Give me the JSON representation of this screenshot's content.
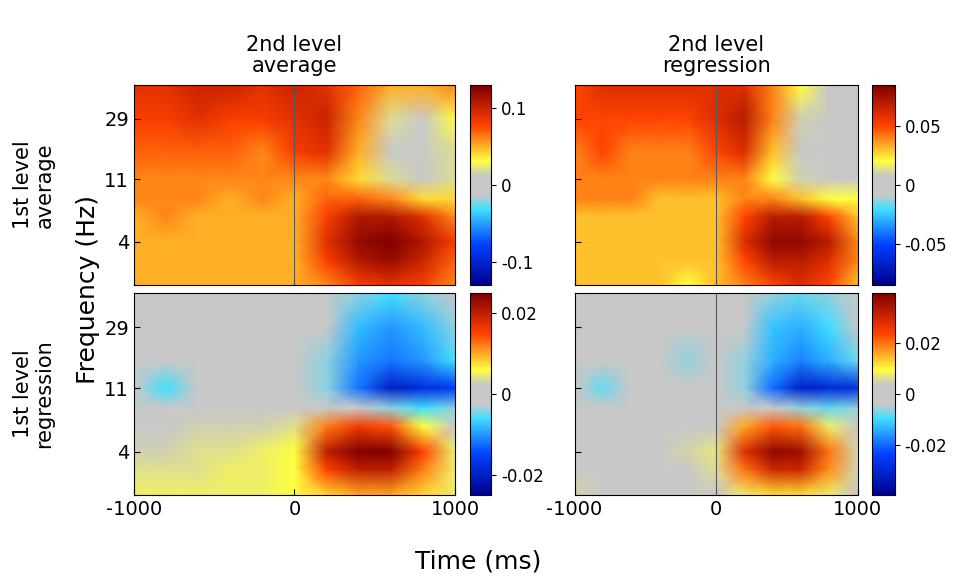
{
  "column_titles": [
    "2nd level\naverage",
    "2nd level\nregression"
  ],
  "row_labels": [
    "1st level\naverage",
    "1st level\nregression"
  ],
  "xlabel": "Time (ms)",
  "ylabel": "Frequency (Hz)",
  "chart_data": [
    {
      "type": "heatmap",
      "log": "y",
      "tick_labels": "y",
      "vline": 0,
      "x": [
        -1000,
        -800,
        -600,
        -400,
        -200,
        0,
        200,
        400,
        600,
        800,
        1000
      ],
      "y": [
        2,
        3,
        4,
        6,
        8,
        11,
        17,
        29,
        50
      ],
      "xlim": [
        -1000,
        1000
      ],
      "xticks": [
        -1000,
        0,
        1000
      ],
      "ylim": [
        2,
        50
      ],
      "yticks": [
        4,
        11,
        29
      ],
      "colorbar_range": [
        -0.13,
        0.13
      ],
      "colorbar_ticks": [
        -0.1,
        0,
        0.1
      ],
      "cells": [
        [
          0.05,
          0.05,
          0.05,
          0.05,
          0.05,
          0.05,
          0.06,
          0.08,
          0.09,
          0.08,
          0.06
        ],
        [
          0.05,
          0.05,
          0.05,
          0.05,
          0.05,
          0.05,
          0.08,
          0.11,
          0.12,
          0.1,
          0.07
        ],
        [
          0.05,
          0.05,
          0.05,
          0.05,
          0.05,
          0.05,
          0.09,
          0.12,
          0.13,
          0.11,
          0.08
        ],
        [
          0.05,
          0.06,
          0.05,
          0.05,
          0.05,
          0.05,
          0.08,
          0.11,
          0.11,
          0.09,
          0.06
        ],
        [
          0.06,
          0.06,
          0.06,
          0.05,
          0.06,
          0.05,
          0.07,
          0.07,
          0.06,
          0.04,
          0.04
        ],
        [
          0.06,
          0.06,
          0.06,
          0.06,
          0.06,
          0.06,
          0.06,
          0.04,
          0.02,
          0.01,
          0.02
        ],
        [
          0.07,
          0.07,
          0.07,
          0.07,
          0.06,
          0.08,
          0.09,
          0.05,
          0.01,
          0.0,
          0.02
        ],
        [
          0.08,
          0.08,
          0.09,
          0.08,
          0.08,
          0.09,
          0.1,
          0.06,
          0.02,
          0.01,
          0.03
        ],
        [
          0.09,
          0.09,
          0.1,
          0.1,
          0.09,
          0.1,
          0.09,
          0.07,
          0.05,
          0.05,
          0.06
        ]
      ]
    },
    {
      "type": "heatmap",
      "log": "y",
      "tick_labels": false,
      "vline": 0,
      "x": [
        -1000,
        -800,
        -600,
        -400,
        -200,
        0,
        200,
        400,
        600,
        800,
        1000
      ],
      "y": [
        2,
        3,
        4,
        6,
        8,
        11,
        17,
        29,
        50
      ],
      "xlim": [
        -1000,
        1000
      ],
      "xticks": [
        -1000,
        0,
        1000
      ],
      "ylim": [
        2,
        50
      ],
      "yticks": [
        4,
        11,
        29
      ],
      "colorbar_range": [
        -0.085,
        0.085
      ],
      "colorbar_ticks": [
        -0.05,
        0,
        0.05
      ],
      "cells": [
        [
          0.03,
          0.03,
          0.03,
          0.03,
          0.02,
          0.03,
          0.04,
          0.05,
          0.06,
          0.05,
          0.03
        ],
        [
          0.03,
          0.03,
          0.03,
          0.03,
          0.03,
          0.03,
          0.05,
          0.07,
          0.07,
          0.06,
          0.04
        ],
        [
          0.03,
          0.03,
          0.03,
          0.03,
          0.03,
          0.03,
          0.06,
          0.08,
          0.08,
          0.07,
          0.04
        ],
        [
          0.03,
          0.03,
          0.03,
          0.03,
          0.03,
          0.03,
          0.05,
          0.07,
          0.07,
          0.05,
          0.03
        ],
        [
          0.04,
          0.04,
          0.04,
          0.03,
          0.03,
          0.03,
          0.04,
          0.04,
          0.03,
          0.02,
          0.02
        ],
        [
          0.04,
          0.04,
          0.04,
          0.04,
          0.04,
          0.04,
          0.04,
          0.02,
          0.01,
          0.0,
          0.0
        ],
        [
          0.04,
          0.05,
          0.04,
          0.04,
          0.04,
          0.05,
          0.06,
          0.03,
          0.0,
          0.0,
          0.0
        ],
        [
          0.05,
          0.05,
          0.05,
          0.05,
          0.05,
          0.06,
          0.07,
          0.04,
          0.01,
          0.0,
          0.0
        ],
        [
          0.05,
          0.06,
          0.06,
          0.06,
          0.06,
          0.06,
          0.06,
          0.04,
          0.02,
          0.0,
          0.0
        ]
      ]
    },
    {
      "type": "heatmap",
      "log": "y",
      "x": [
        -1000,
        -800,
        -600,
        -400,
        -200,
        0,
        200,
        400,
        600,
        800,
        1000
      ],
      "y": [
        2,
        3,
        4,
        6,
        8,
        11,
        17,
        29,
        50
      ],
      "xlim": [
        -1000,
        1000
      ],
      "xticks": [
        -1000,
        0,
        1000
      ],
      "ylim": [
        2,
        50
      ],
      "yticks": [
        4,
        11,
        29
      ],
      "colorbar_range": [
        -0.025,
        0.025
      ],
      "colorbar_ticks": [
        -0.02,
        0,
        0.02
      ],
      "cells": [
        [
          0.005,
          0.005,
          0.005,
          0.005,
          0.005,
          0.006,
          0.008,
          0.01,
          0.01,
          0.008,
          0.005
        ],
        [
          0.004,
          0.004,
          0.004,
          0.005,
          0.005,
          0.006,
          0.015,
          0.02,
          0.02,
          0.012,
          0.005
        ],
        [
          0.003,
          0.003,
          0.004,
          0.004,
          0.005,
          0.006,
          0.02,
          0.025,
          0.025,
          0.015,
          0.005
        ],
        [
          0.002,
          0.002,
          0.003,
          0.003,
          0.003,
          0.004,
          0.012,
          0.016,
          0.014,
          0.006,
          0.002
        ],
        [
          0,
          0,
          0,
          0,
          -0.002,
          0,
          0,
          0,
          -0.004,
          -0.006,
          -0.004
        ],
        [
          0,
          -0.006,
          0,
          0,
          0,
          0,
          -0.004,
          -0.012,
          -0.02,
          -0.018,
          -0.016
        ],
        [
          0,
          0,
          0,
          0,
          0,
          0,
          -0.004,
          -0.01,
          -0.012,
          -0.01,
          -0.006
        ],
        [
          0,
          0,
          0,
          0,
          0,
          0,
          -0.002,
          -0.008,
          -0.01,
          -0.008,
          -0.004
        ],
        [
          0,
          0,
          0,
          0,
          0,
          0,
          0,
          -0.004,
          -0.006,
          -0.004,
          0
        ]
      ]
    },
    {
      "type": "heatmap",
      "log": "y",
      "tick_labels": "x",
      "vline": 0,
      "x": [
        -1000,
        -800,
        -600,
        -400,
        -200,
        0,
        200,
        400,
        600,
        800,
        1000
      ],
      "y": [
        2,
        3,
        4,
        6,
        8,
        11,
        17,
        29,
        50
      ],
      "xlim": [
        -1000,
        1000
      ],
      "xticks": [
        -1000,
        0,
        1000
      ],
      "ylim": [
        2,
        50
      ],
      "yticks": [
        4,
        11,
        29
      ],
      "colorbar_range": [
        -0.04,
        0.04
      ],
      "colorbar_ticks": [
        -0.02,
        0,
        0.02
      ],
      "cells": [
        [
          0.005,
          0.004,
          0.003,
          0.003,
          0.003,
          0.004,
          0.008,
          0.012,
          0.012,
          0.008,
          0.003
        ],
        [
          0.004,
          0.003,
          0.003,
          0.004,
          0.004,
          0.006,
          0.02,
          0.03,
          0.03,
          0.018,
          0.005
        ],
        [
          0.003,
          0.003,
          0.003,
          0.004,
          0.005,
          0.007,
          0.028,
          0.038,
          0.036,
          0.02,
          0.005
        ],
        [
          0.002,
          0.002,
          0.002,
          0.002,
          0.003,
          0.004,
          0.016,
          0.022,
          0.02,
          0.008,
          0.002
        ],
        [
          0,
          0,
          0,
          0,
          -0.002,
          0,
          0,
          0,
          -0.006,
          -0.008,
          -0.006
        ],
        [
          0,
          -0.008,
          0,
          0,
          0,
          0,
          -0.006,
          -0.02,
          -0.032,
          -0.03,
          -0.028
        ],
        [
          0,
          0,
          0,
          0,
          -0.006,
          0,
          -0.006,
          -0.014,
          -0.018,
          -0.014,
          -0.008
        ],
        [
          0,
          0,
          0,
          0,
          0,
          0,
          -0.003,
          -0.012,
          -0.014,
          -0.01,
          -0.004
        ],
        [
          0,
          0,
          0,
          0,
          0,
          0,
          0,
          -0.006,
          -0.008,
          -0.006,
          0
        ]
      ]
    }
  ]
}
